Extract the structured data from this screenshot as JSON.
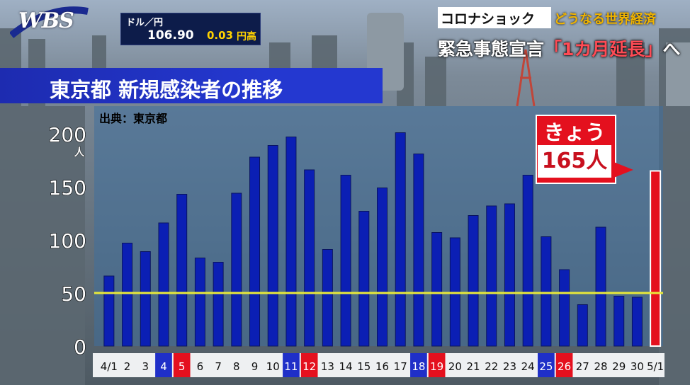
{
  "logo": {
    "text": "WBS"
  },
  "ticker": {
    "pair": "ドル／円",
    "rate": "106.90",
    "change": "0.03",
    "direction": "円高"
  },
  "topic": {
    "label": "コロナショック",
    "sub": "どうなる世界経済"
  },
  "headline": {
    "pre": "緊急事態宣言",
    "quote": "「1カ月延長」",
    "post": "へ"
  },
  "colors": {
    "bar": "#0b1fb4",
    "today_bar": "#e4101e",
    "threshold": "#e8e83a",
    "saturday_label": "#1f2fc8",
    "sunday_label": "#e4101e",
    "title_bg": "#2438d0"
  },
  "chart_data": {
    "type": "bar",
    "title": "東京都 新規感染者の推移",
    "source": "出典：東京都",
    "unit": "人",
    "yticks": [
      "0",
      "50",
      "100",
      "150",
      "200"
    ],
    "ylim": [
      0,
      210
    ],
    "reference_line": 50,
    "categories": [
      "4/1",
      "2",
      "3",
      "4",
      "5",
      "6",
      "7",
      "8",
      "9",
      "10",
      "11",
      "12",
      "13",
      "14",
      "15",
      "16",
      "17",
      "18",
      "19",
      "20",
      "21",
      "22",
      "23",
      "24",
      "25",
      "26",
      "27",
      "28",
      "29",
      "30",
      "5/1"
    ],
    "day_types": [
      "w",
      "w",
      "w",
      "sat",
      "sun",
      "w",
      "w",
      "w",
      "w",
      "w",
      "sat",
      "sun",
      "w",
      "w",
      "w",
      "w",
      "w",
      "sat",
      "sun",
      "w",
      "w",
      "w",
      "w",
      "w",
      "sat",
      "sun",
      "w",
      "w",
      "w",
      "w",
      "w"
    ],
    "values": [
      66,
      97,
      89,
      116,
      143,
      83,
      79,
      144,
      178,
      189,
      197,
      166,
      91,
      161,
      127,
      149,
      201,
      181,
      107,
      102,
      123,
      132,
      134,
      161,
      103,
      72,
      39,
      112,
      47,
      46,
      165
    ],
    "highlight": {
      "index": 30,
      "label": "きょう",
      "value": "165人"
    }
  }
}
